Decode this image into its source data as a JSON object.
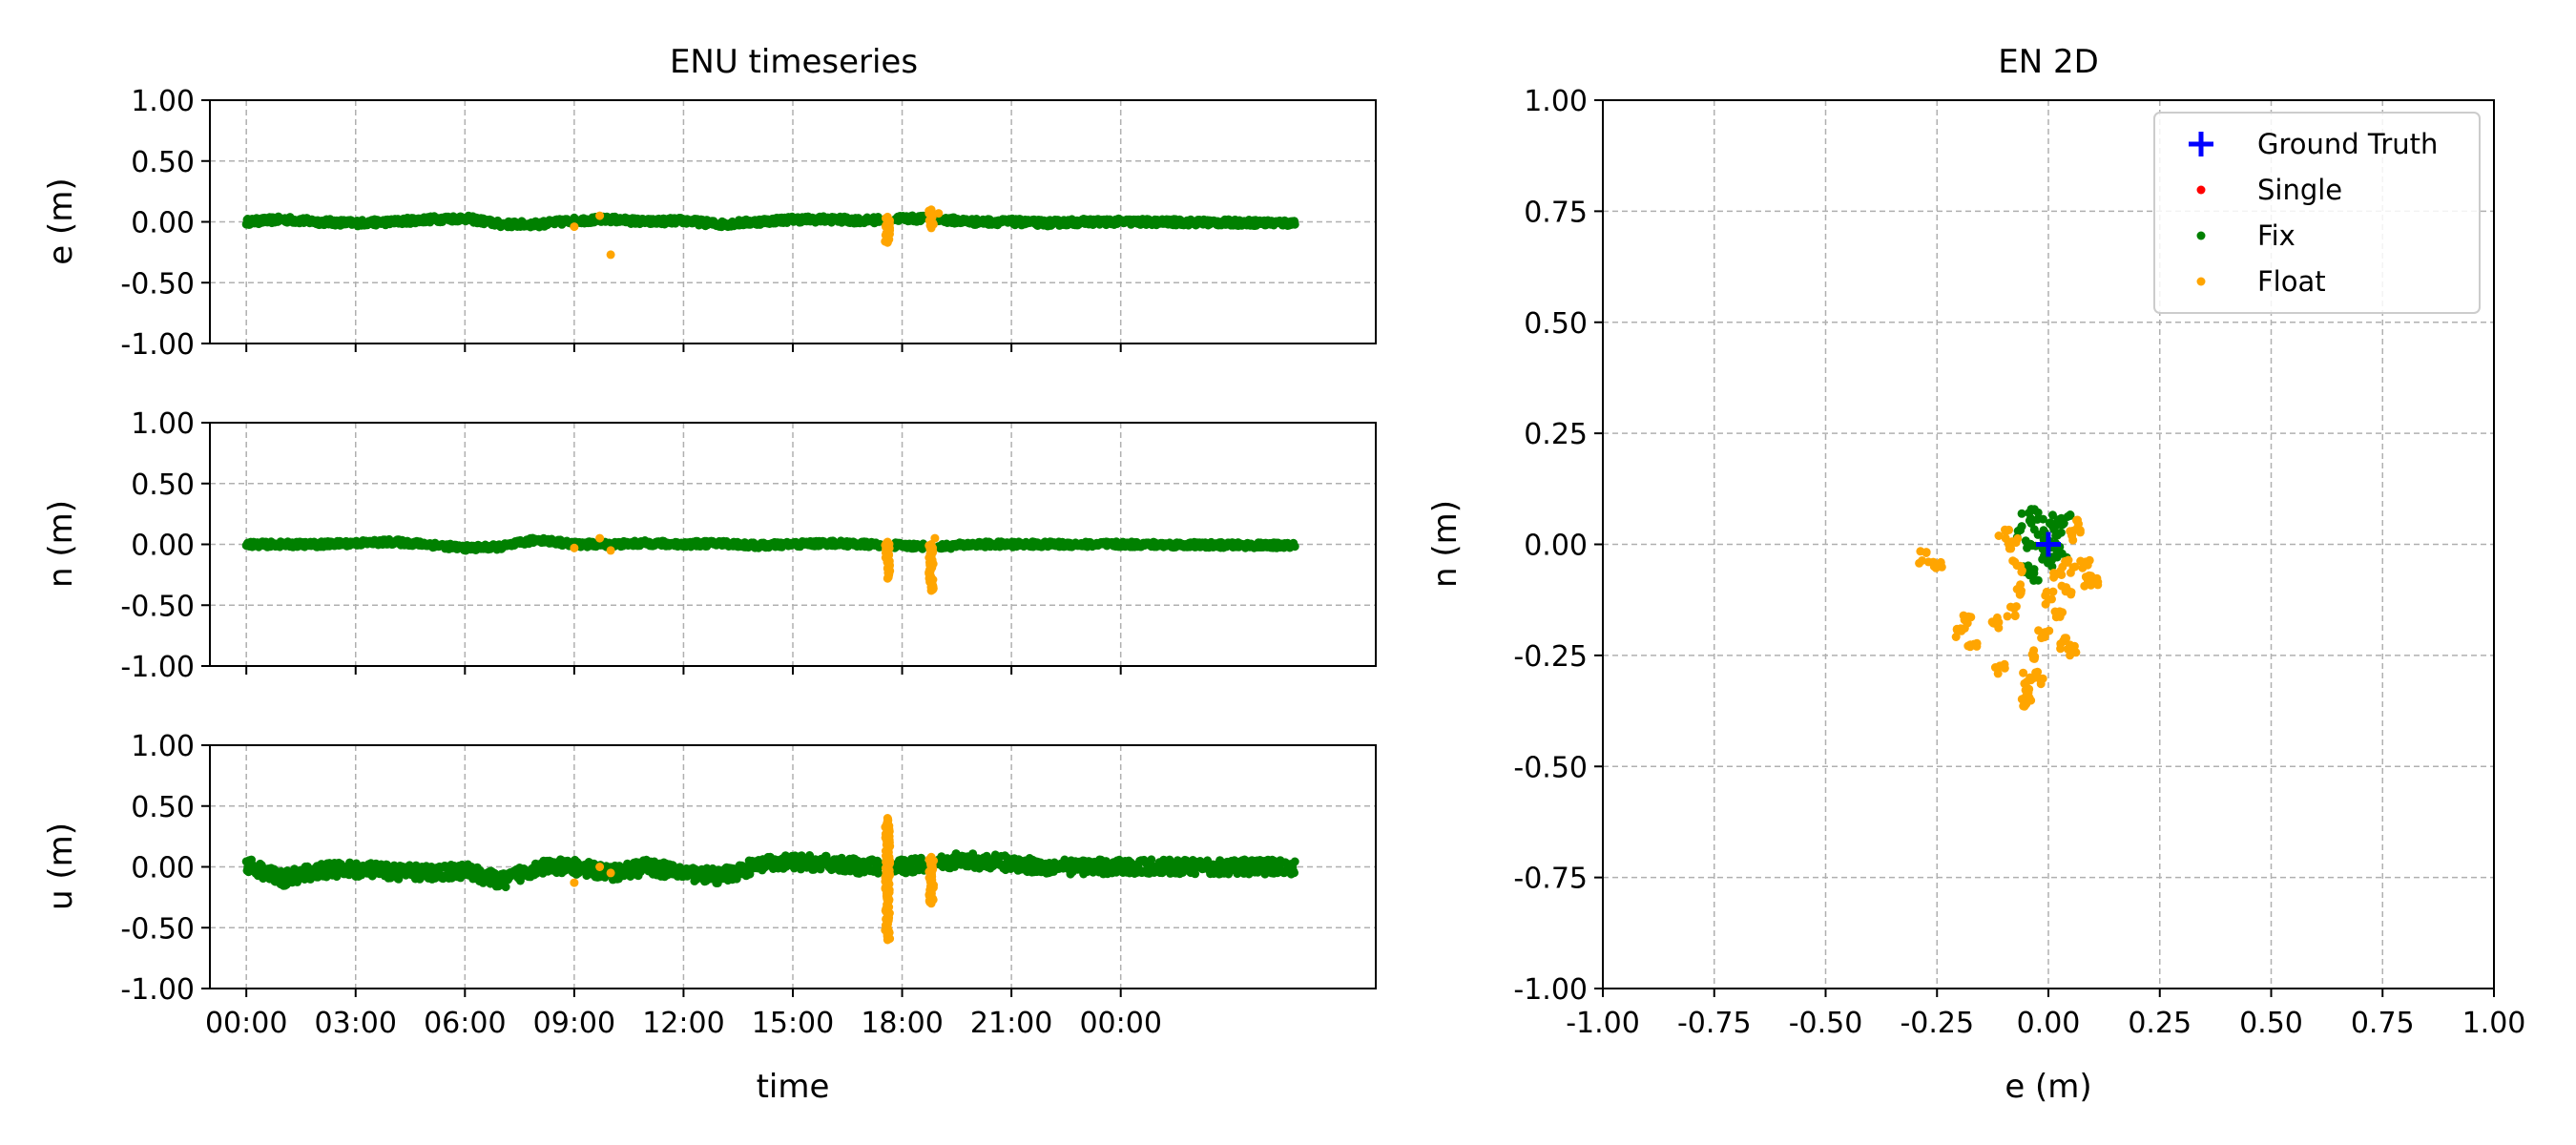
{
  "chart_data": [
    {
      "type": "scatter",
      "title": "ENU timeseries",
      "xlabel": "time",
      "x_tick_labels": [
        "00:00",
        "03:00",
        "06:00",
        "09:00",
        "12:00",
        "15:00",
        "18:00",
        "21:00",
        "00:00"
      ],
      "x_range_hours": [
        -1,
        31
      ],
      "grid": true,
      "subplots": [
        {
          "ylabel": "e (m)",
          "ylim": [
            -1.0,
            1.0
          ],
          "y_tick_labels": [
            "1.00",
            "0.50",
            "0.00",
            "-0.50",
            "-1.00"
          ],
          "series": [
            {
              "name": "Fix",
              "color": "#008000",
              "baseline_points": [
                [
                  0,
                  0.0
                ],
                [
                  1,
                  0.02
                ],
                [
                  2,
                  0.0
                ],
                [
                  3,
                  -0.01
                ],
                [
                  4,
                  0.0
                ],
                [
                  5,
                  0.02
                ],
                [
                  6,
                  0.03
                ],
                [
                  7,
                  -0.02
                ],
                [
                  8,
                  -0.02
                ],
                [
                  9,
                  0.01
                ],
                [
                  10,
                  0.02
                ],
                [
                  11,
                  0.0
                ],
                [
                  12,
                  0.01
                ],
                [
                  13,
                  -0.02
                ],
                [
                  14,
                  0.0
                ],
                [
                  15,
                  0.02
                ],
                [
                  16,
                  0.02
                ],
                [
                  17,
                  0.01
                ],
                [
                  18,
                  0.03
                ],
                [
                  19,
                  0.02
                ],
                [
                  20,
                  0.0
                ],
                [
                  21,
                  0.0
                ],
                [
                  22,
                  -0.01
                ],
                [
                  23,
                  0.0
                ],
                [
                  24,
                  0.0
                ],
                [
                  28.8,
                  -0.01
                ]
              ],
              "noise": 0.025
            },
            {
              "name": "Float",
              "color": "#ffa500",
              "points": [
                [
                  9.0,
                  -0.04
                ],
                [
                  9.7,
                  0.05
                ],
                [
                  10.0,
                  -0.27
                ],
                [
                  17.6,
                  -0.17
                ],
                [
                  17.6,
                  -0.12
                ],
                [
                  17.6,
                  -0.06
                ],
                [
                  17.6,
                  0.0
                ],
                [
                  17.6,
                  0.04
                ],
                [
                  18.8,
                  -0.05
                ],
                [
                  18.8,
                  0.0
                ],
                [
                  18.8,
                  0.05
                ],
                [
                  18.8,
                  0.1
                ],
                [
                  19.0,
                  0.07
                ]
              ]
            }
          ]
        },
        {
          "ylabel": "n (m)",
          "ylim": [
            -1.0,
            1.0
          ],
          "y_tick_labels": [
            "1.00",
            "0.50",
            "0.00",
            "-0.50",
            "-1.00"
          ],
          "series": [
            {
              "name": "Fix",
              "color": "#008000",
              "baseline_points": [
                [
                  0,
                  0.0
                ],
                [
                  1,
                  0.0
                ],
                [
                  2,
                  0.0
                ],
                [
                  3,
                  0.01
                ],
                [
                  4,
                  0.02
                ],
                [
                  5,
                  0.0
                ],
                [
                  6,
                  -0.03
                ],
                [
                  7,
                  -0.02
                ],
                [
                  8,
                  0.04
                ],
                [
                  9,
                  0.0
                ],
                [
                  10,
                  0.0
                ],
                [
                  11,
                  0.01
                ],
                [
                  12,
                  0.0
                ],
                [
                  13,
                  0.01
                ],
                [
                  14,
                  -0.01
                ],
                [
                  15,
                  0.0
                ],
                [
                  16,
                  0.01
                ],
                [
                  17,
                  0.0
                ],
                [
                  18,
                  -0.01
                ],
                [
                  19,
                  -0.02
                ],
                [
                  20,
                  0.0
                ],
                [
                  21,
                  0.0
                ],
                [
                  22,
                  0.0
                ],
                [
                  23,
                  0.0
                ],
                [
                  24,
                  0.0
                ],
                [
                  28.8,
                  -0.01
                ]
              ],
              "noise": 0.022
            },
            {
              "name": "Float",
              "color": "#ffa500",
              "points": [
                [
                  9.0,
                  -0.03
                ],
                [
                  9.7,
                  0.05
                ],
                [
                  10.0,
                  -0.05
                ],
                [
                  17.6,
                  -0.28
                ],
                [
                  17.6,
                  -0.2
                ],
                [
                  17.6,
                  -0.12
                ],
                [
                  17.6,
                  -0.05
                ],
                [
                  17.6,
                  0.02
                ],
                [
                  18.8,
                  -0.38
                ],
                [
                  18.8,
                  -0.3
                ],
                [
                  18.8,
                  -0.2
                ],
                [
                  18.8,
                  -0.1
                ],
                [
                  18.8,
                  0.0
                ],
                [
                  18.9,
                  0.05
                ]
              ]
            }
          ]
        },
        {
          "ylabel": "u (m)",
          "ylim": [
            -1.0,
            1.0
          ],
          "y_tick_labels": [
            "1.00",
            "0.50",
            "0.00",
            "-0.50",
            "-1.00"
          ],
          "series": [
            {
              "name": "Fix",
              "color": "#008000",
              "baseline_points": [
                [
                  0,
                  0.02
                ],
                [
                  1,
                  -0.1
                ],
                [
                  2,
                  -0.03
                ],
                [
                  3,
                  -0.02
                ],
                [
                  4,
                  -0.04
                ],
                [
                  5,
                  -0.05
                ],
                [
                  6,
                  -0.03
                ],
                [
                  7,
                  -0.12
                ],
                [
                  8,
                  0.0
                ],
                [
                  9,
                  0.0
                ],
                [
                  10,
                  -0.05
                ],
                [
                  11,
                  0.0
                ],
                [
                  12,
                  -0.05
                ],
                [
                  13,
                  -0.08
                ],
                [
                  14,
                  0.01
                ],
                [
                  15,
                  0.04
                ],
                [
                  16,
                  0.03
                ],
                [
                  17,
                  0.0
                ],
                [
                  18,
                  0.0
                ],
                [
                  19,
                  0.05
                ],
                [
                  20,
                  0.05
                ],
                [
                  21,
                  0.03
                ],
                [
                  22,
                  0.0
                ],
                [
                  23,
                  0.0
                ],
                [
                  24,
                  0.0
                ],
                [
                  28.8,
                  0.0
                ]
              ],
              "noise": 0.06
            },
            {
              "name": "Float",
              "color": "#ffa500",
              "points": [
                [
                  9.0,
                  -0.13
                ],
                [
                  9.7,
                  0.0
                ],
                [
                  10.0,
                  -0.05
                ],
                [
                  17.6,
                  -0.6
                ],
                [
                  17.6,
                  -0.5
                ],
                [
                  17.6,
                  -0.3
                ],
                [
                  17.6,
                  -0.15
                ],
                [
                  17.6,
                  0.0
                ],
                [
                  17.6,
                  0.15
                ],
                [
                  17.6,
                  0.3
                ],
                [
                  17.6,
                  0.4
                ],
                [
                  18.8,
                  -0.3
                ],
                [
                  18.8,
                  -0.2
                ],
                [
                  18.8,
                  -0.1
                ],
                [
                  18.8,
                  0.0
                ],
                [
                  18.8,
                  0.08
                ]
              ]
            }
          ]
        }
      ]
    },
    {
      "type": "scatter",
      "title": "EN 2D",
      "xlabel": "e (m)",
      "ylabel": "n (m)",
      "xlim": [
        -1.0,
        1.0
      ],
      "ylim": [
        -1.0,
        1.0
      ],
      "x_tick_labels": [
        "-1.00",
        "-0.75",
        "-0.50",
        "-0.25",
        "0.00",
        "0.25",
        "0.50",
        "0.75",
        "1.00"
      ],
      "y_tick_labels": [
        "1.00",
        "0.75",
        "0.50",
        "0.25",
        "0.00",
        "-0.25",
        "-0.50",
        "-0.75",
        "-1.00"
      ],
      "grid": true,
      "legend_position": "top-right",
      "legend": [
        {
          "name": "Ground Truth",
          "marker": "plus",
          "color": "#0000ff"
        },
        {
          "name": "Single",
          "marker": "dot",
          "color": "#ff0000"
        },
        {
          "name": "Fix",
          "marker": "dot",
          "color": "#008000"
        },
        {
          "name": "Float",
          "marker": "dot",
          "color": "#ffa500"
        }
      ],
      "series": [
        {
          "name": "Ground Truth",
          "color": "#0000ff",
          "points": [
            [
              0.0,
              0.0
            ]
          ]
        },
        {
          "name": "Fix",
          "color": "#008000",
          "points": [
            [
              -0.05,
              0.06
            ],
            [
              -0.03,
              0.07
            ],
            [
              0.0,
              0.06
            ],
            [
              0.02,
              0.05
            ],
            [
              -0.06,
              0.03
            ],
            [
              -0.02,
              0.02
            ],
            [
              0.01,
              0.0
            ],
            [
              0.03,
              -0.02
            ],
            [
              -0.05,
              -0.05
            ],
            [
              -0.03,
              -0.07
            ],
            [
              0.0,
              -0.04
            ],
            [
              0.02,
              0.03
            ],
            [
              -0.04,
              0.0
            ],
            [
              0.04,
              0.06
            ],
            [
              -0.01,
              -0.02
            ]
          ]
        },
        {
          "name": "Float",
          "color": "#ffa500",
          "points": [
            [
              -0.28,
              -0.03
            ],
            [
              -0.25,
              -0.04
            ],
            [
              -0.2,
              -0.2
            ],
            [
              -0.18,
              -0.17
            ],
            [
              -0.17,
              -0.22
            ],
            [
              -0.12,
              -0.18
            ],
            [
              -0.11,
              -0.28
            ],
            [
              -0.08,
              -0.15
            ],
            [
              -0.1,
              0.02
            ],
            [
              -0.08,
              0.0
            ],
            [
              -0.07,
              -0.05
            ],
            [
              -0.06,
              -0.1
            ],
            [
              -0.05,
              -0.3
            ],
            [
              -0.05,
              -0.36
            ],
            [
              -0.04,
              -0.34
            ],
            [
              -0.03,
              -0.25
            ],
            [
              -0.02,
              -0.3
            ],
            [
              -0.01,
              -0.2
            ],
            [
              0.0,
              -0.12
            ],
            [
              0.02,
              -0.16
            ],
            [
              0.03,
              -0.22
            ],
            [
              0.04,
              -0.1
            ],
            [
              0.05,
              -0.05
            ],
            [
              0.06,
              0.02
            ],
            [
              0.07,
              0.04
            ],
            [
              0.08,
              -0.05
            ],
            [
              0.09,
              -0.08
            ],
            [
              0.1,
              -0.08
            ],
            [
              0.05,
              -0.24
            ],
            [
              0.02,
              -0.06
            ]
          ]
        }
      ]
    }
  ]
}
